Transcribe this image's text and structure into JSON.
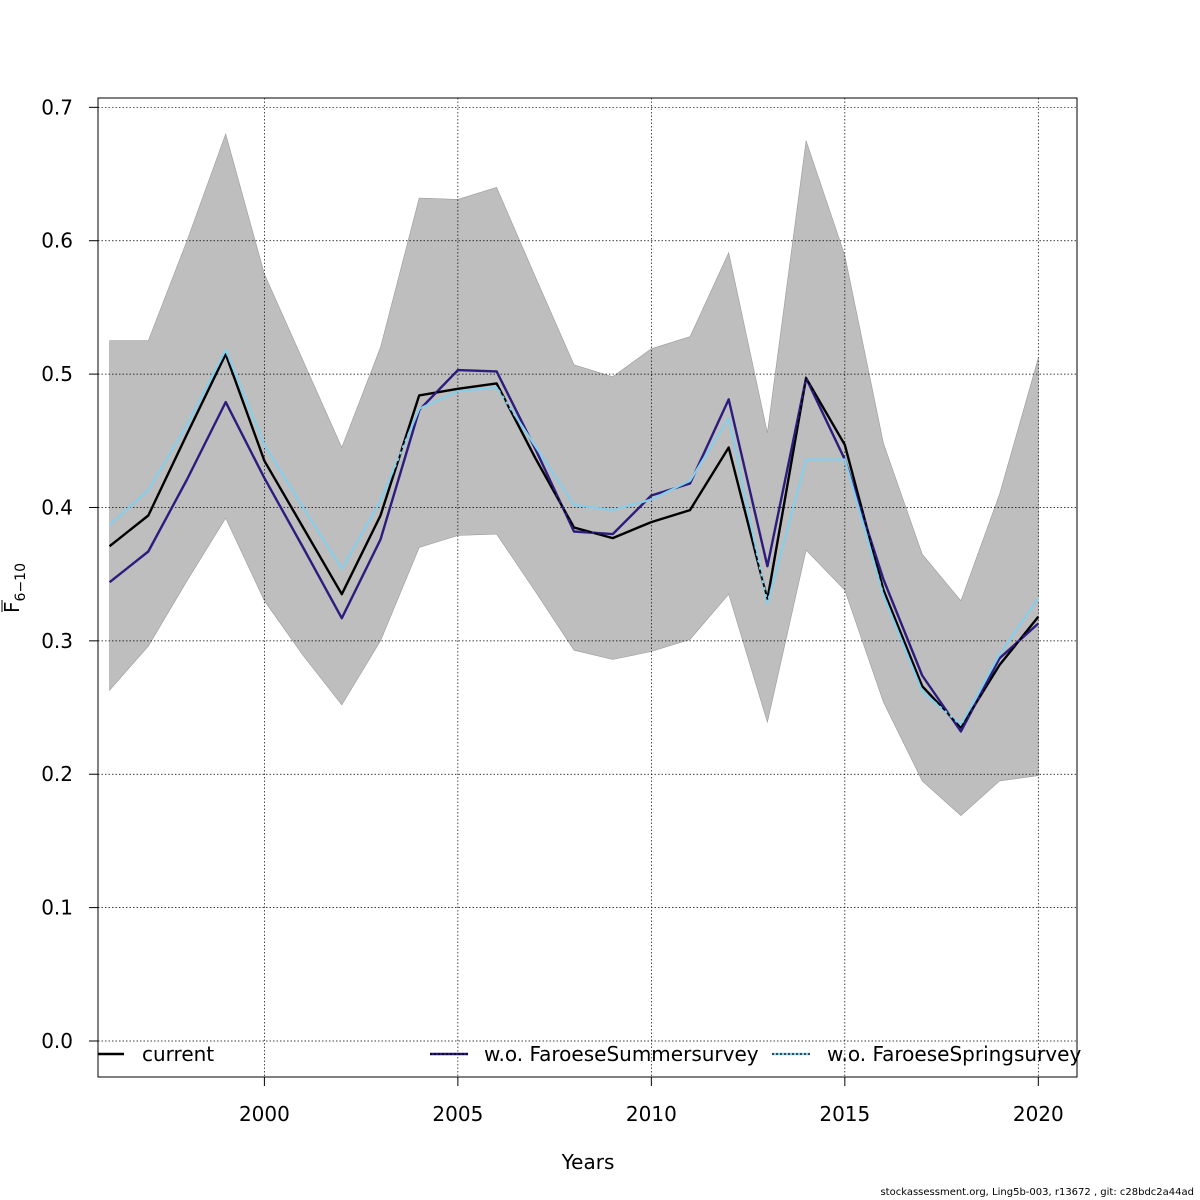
{
  "chart_data": {
    "type": "line",
    "xlabel": "Years",
    "ylabel_main": "F",
    "ylabel_sub": "6−10",
    "xlim": [
      1995.7,
      2021.0
    ],
    "ylim": [
      -0.027,
      0.707
    ],
    "x_ticks": [
      2000,
      2005,
      2010,
      2015,
      2020
    ],
    "x_tick_labels": [
      "2000",
      "2005",
      "2010",
      "2015",
      "2020"
    ],
    "y_ticks": [
      0.0,
      0.1,
      0.2,
      0.3,
      0.4,
      0.5,
      0.6,
      0.7
    ],
    "y_tick_labels": [
      "0.0",
      "0.1",
      "0.2",
      "0.3",
      "0.4",
      "0.5",
      "0.6",
      "0.7"
    ],
    "grid": true,
    "legend_position": "bottom",
    "x": [
      1996,
      1997,
      1998,
      1999,
      2000,
      2001,
      2002,
      2003,
      2004,
      2005,
      2006,
      2007,
      2008,
      2009,
      2010,
      2011,
      2012,
      2013,
      2014,
      2015,
      2016,
      2017,
      2018,
      2019,
      2020
    ],
    "band": {
      "color": "#bebebe",
      "upper": [
        0.525,
        0.525,
        0.6,
        0.68,
        0.575,
        0.51,
        0.445,
        0.52,
        0.632,
        0.631,
        0.64,
        0.573,
        0.507,
        0.498,
        0.519,
        0.528,
        0.591,
        0.456,
        0.675,
        0.589,
        0.448,
        0.365,
        0.33,
        0.41,
        0.512
      ],
      "lower": [
        0.263,
        0.296,
        0.345,
        0.392,
        0.33,
        0.289,
        0.252,
        0.3,
        0.37,
        0.379,
        0.38,
        0.337,
        0.293,
        0.286,
        0.292,
        0.301,
        0.335,
        0.239,
        0.368,
        0.338,
        0.254,
        0.195,
        0.169,
        0.195,
        0.199
      ]
    },
    "series": [
      {
        "name": "current",
        "color": "#000000",
        "values": [
          0.371,
          0.394,
          0.455,
          0.515,
          0.435,
          0.385,
          0.335,
          0.394,
          0.484,
          0.489,
          0.493,
          0.437,
          0.385,
          0.377,
          0.389,
          0.398,
          0.445,
          0.331,
          0.497,
          0.447,
          0.338,
          0.266,
          0.235,
          0.282,
          0.318
        ]
      },
      {
        "name": "w.o. FaroeseSummersurvey",
        "color": "#2d1b7e",
        "values": [
          0.344,
          0.367,
          0.421,
          0.479,
          0.422,
          0.37,
          0.317,
          0.376,
          0.473,
          0.503,
          0.502,
          0.444,
          0.382,
          0.38,
          0.409,
          0.418,
          0.481,
          0.356,
          0.497,
          0.436,
          0.346,
          0.274,
          0.232,
          0.287,
          0.313
        ]
      },
      {
        "name": "w.o. FaroeseSpringsurvey",
        "color": "#87ceeb",
        "values": [
          0.387,
          0.413,
          0.462,
          0.518,
          0.447,
          0.4,
          0.354,
          0.405,
          0.474,
          0.487,
          0.49,
          0.446,
          0.402,
          0.398,
          0.406,
          0.42,
          0.467,
          0.328,
          0.436,
          0.436,
          0.334,
          0.262,
          0.237,
          0.29,
          0.332
        ]
      }
    ]
  },
  "footer": "stockassessment.org, Ling5b-003, r13672 , git: c28bdc2a44ad"
}
